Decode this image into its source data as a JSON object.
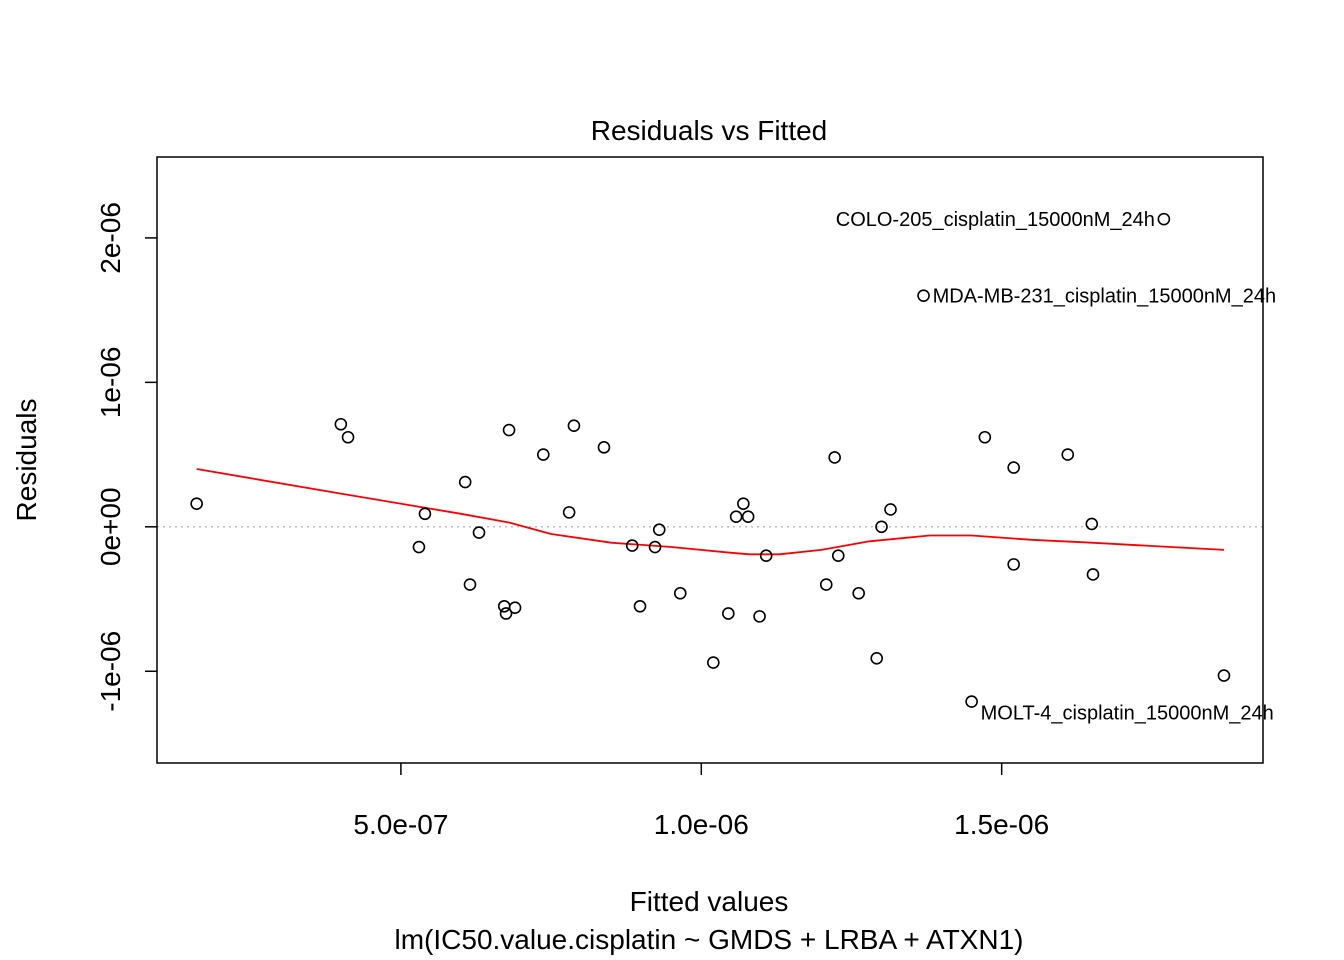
{
  "chart_data": {
    "type": "scatter",
    "title": "Residuals vs Fitted",
    "xlabel": "Fitted values",
    "ylabel": "Residuals",
    "subtitle": "lm(IC50.value.cisplatin ~ GMDS + LRBA + ATXN1)",
    "xlim": [
      9.4e-08,
      1.935e-06
    ],
    "ylim": [
      -1.635e-06,
      2.56e-06
    ],
    "x_ticks": [
      {
        "value": 5e-07,
        "label": "5.0e-07"
      },
      {
        "value": 1e-06,
        "label": "1.0e-06"
      },
      {
        "value": 1.5e-06,
        "label": "1.5e-06"
      }
    ],
    "y_ticks": [
      {
        "value": -1e-06,
        "label": "-1e-06"
      },
      {
        "value": 0,
        "label": "0e+00"
      },
      {
        "value": 1e-06,
        "label": "1e-06"
      },
      {
        "value": 2e-06,
        "label": "2e-06"
      }
    ],
    "reference_line": {
      "y": 0,
      "style": "dotted",
      "color": "#bdbdbd"
    },
    "points": [
      {
        "x": 1.6e-07,
        "y": 1.6e-07
      },
      {
        "x": 4e-07,
        "y": 7.1e-07
      },
      {
        "x": 4.12e-07,
        "y": 6.2e-07
      },
      {
        "x": 5.3e-07,
        "y": -1.4e-07
      },
      {
        "x": 5.4e-07,
        "y": 9e-08
      },
      {
        "x": 6.07e-07,
        "y": 3.1e-07
      },
      {
        "x": 6.15e-07,
        "y": -4e-07
      },
      {
        "x": 6.3e-07,
        "y": -4e-08
      },
      {
        "x": 6.72e-07,
        "y": -5.5e-07
      },
      {
        "x": 6.75e-07,
        "y": -6e-07
      },
      {
        "x": 6.8e-07,
        "y": 6.7e-07
      },
      {
        "x": 6.9e-07,
        "y": -5.6e-07
      },
      {
        "x": 7.37e-07,
        "y": 5e-07
      },
      {
        "x": 7.8e-07,
        "y": 1e-07
      },
      {
        "x": 7.88e-07,
        "y": 7e-07
      },
      {
        "x": 8.38e-07,
        "y": 5.5e-07
      },
      {
        "x": 8.85e-07,
        "y": -1.3e-07
      },
      {
        "x": 8.98e-07,
        "y": -5.5e-07
      },
      {
        "x": 9.23e-07,
        "y": -1.4e-07
      },
      {
        "x": 9.3e-07,
        "y": -2e-08
      },
      {
        "x": 9.65e-07,
        "y": -4.6e-07
      },
      {
        "x": 1.02e-06,
        "y": -9.4e-07
      },
      {
        "x": 1.045e-06,
        "y": -6e-07
      },
      {
        "x": 1.058e-06,
        "y": 7e-08
      },
      {
        "x": 1.07e-06,
        "y": 1.6e-07
      },
      {
        "x": 1.078e-06,
        "y": 7e-08
      },
      {
        "x": 1.097e-06,
        "y": -6.2e-07
      },
      {
        "x": 1.108e-06,
        "y": -2e-07
      },
      {
        "x": 1.208e-06,
        "y": -4e-07
      },
      {
        "x": 1.222e-06,
        "y": 4.8e-07
      },
      {
        "x": 1.228e-06,
        "y": -2e-07
      },
      {
        "x": 1.262e-06,
        "y": -4.6e-07
      },
      {
        "x": 1.292e-06,
        "y": -9.1e-07
      },
      {
        "x": 1.3e-06,
        "y": 0.0
      },
      {
        "x": 1.315e-06,
        "y": 1.2e-07
      },
      {
        "x": 1.37e-06,
        "y": 1.6e-06,
        "label": "MDA-MB-231_cisplatin_15000nM_24h",
        "label_side": "right"
      },
      {
        "x": 1.45e-06,
        "y": -1.21e-06,
        "label": "MOLT-4_cisplatin_15000nM_24h",
        "label_side": "right"
      },
      {
        "x": 1.472e-06,
        "y": 6.2e-07
      },
      {
        "x": 1.52e-06,
        "y": -2.6e-07
      },
      {
        "x": 1.52e-06,
        "y": 4.1e-07
      },
      {
        "x": 1.61e-06,
        "y": 5e-07
      },
      {
        "x": 1.65e-06,
        "y": 2e-08
      },
      {
        "x": 1.652e-06,
        "y": -3.3e-07
      },
      {
        "x": 1.77e-06,
        "y": 2.13e-06,
        "label": "COLO-205_cisplatin_15000nM_24h",
        "label_side": "left"
      },
      {
        "x": 1.87e-06,
        "y": -1.03e-06
      }
    ],
    "smoother": {
      "color": "#ff0000",
      "x": [
        1.6e-07,
        4e-07,
        6e-07,
        6.8e-07,
        7.5e-07,
        8.5e-07,
        9.5e-07,
        1.05e-06,
        1.08e-06,
        1.13e-06,
        1.2e-06,
        1.28e-06,
        1.38e-06,
        1.45e-06,
        1.55e-06,
        1.65e-06,
        1.87e-06
      ],
      "y": [
        4e-07,
        2.3e-07,
        9e-08,
        3e-08,
        -5e-08,
        -1.1e-07,
        -1.4e-07,
        -1.8e-07,
        -1.9e-07,
        -1.9e-07,
        -1.6e-07,
        -1e-07,
        -6e-08,
        -6e-08,
        -9e-08,
        -1.1e-07,
        -1.6e-07
      ]
    }
  }
}
